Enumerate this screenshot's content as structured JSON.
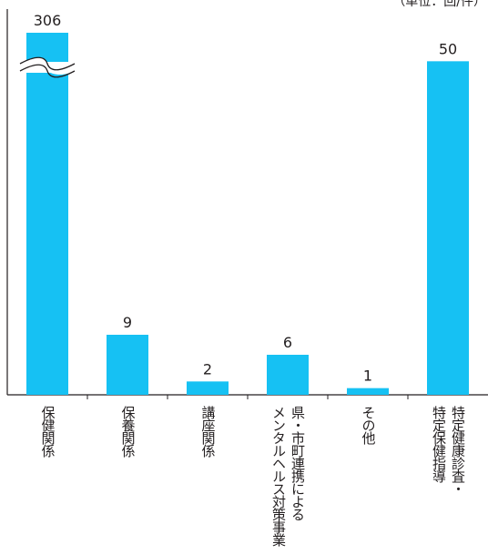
{
  "unit": "（単位：回/件）",
  "chart_data": {
    "type": "bar",
    "title": "",
    "xlabel": "",
    "ylabel": "",
    "ylim": [
      0,
      10
    ],
    "grid": false,
    "legend": "none",
    "axis_break_on": "保健関係",
    "categories": [
      "保健関係",
      "保養関係",
      "講座関係",
      "県・市町連携による\nメンタルヘルス対策事業",
      "その他",
      "特定健康診査・\n特定保健指導"
    ],
    "values": [
      306,
      9,
      2,
      6,
      1,
      50
    ],
    "value_labels": [
      "306",
      "9",
      "2",
      "6",
      "1",
      "50"
    ],
    "colors": {
      "bar": "#16c1f3",
      "axis": "#231f20"
    }
  }
}
